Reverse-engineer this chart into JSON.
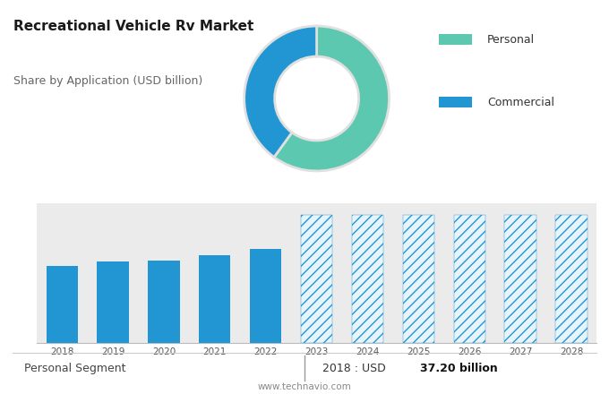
{
  "title": "Recreational Vehicle Rv Market",
  "subtitle": "Share by Application (USD billion)",
  "donut_values": [
    60,
    40
  ],
  "donut_colors": [
    "#5bc8af",
    "#2196d3"
  ],
  "legend_labels": [
    "Personal",
    "Commercial"
  ],
  "legend_colors": [
    "#5bc8af",
    "#2196d3"
  ],
  "bar_years_solid": [
    2018,
    2019,
    2020,
    2021,
    2022
  ],
  "bar_values_solid": [
    37.2,
    39.5,
    40.0,
    42.5,
    45.5
  ],
  "bar_years_hatched": [
    2023,
    2024,
    2025,
    2026,
    2027,
    2028
  ],
  "bar_values_hatched": [
    62.0,
    62.0,
    62.0,
    62.0,
    62.0,
    62.0
  ],
  "bar_color_solid": "#2196d3",
  "bar_color_hatched_face": "#e8f4fc",
  "bar_color_hatched_edge": "#2196d3",
  "hatch_pattern": "///",
  "bg_top": "#e0e0e0",
  "bg_bar": "#ebebeb",
  "bg_bottom": "#ffffff",
  "footer_left": "Personal Segment",
  "footer_right_prefix": "2018 : USD ",
  "footer_right_bold": "37.20 billion",
  "footer_url": "www.technavio.com",
  "ylim": [
    0,
    68
  ],
  "donut_startangle": 90,
  "donut_pct_blue": 40
}
